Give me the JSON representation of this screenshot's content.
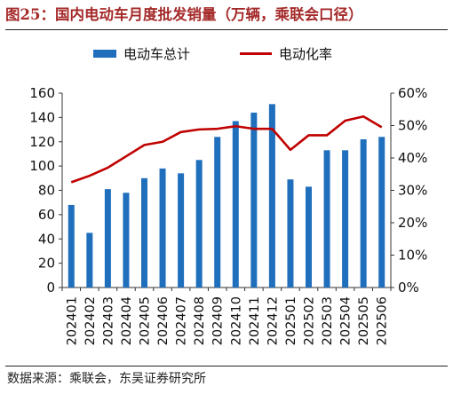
{
  "figure": {
    "title": "图25：国内电动车月度批发销量（万辆，乘联会口径）",
    "source": "数据来源：乘联会，东吴证券研究所"
  },
  "colors": {
    "bar": "#1f6fbd",
    "line": "#c00000",
    "title": "#a52a2a"
  },
  "chart_data": {
    "type": "bar",
    "categories": [
      "202401",
      "202402",
      "202403",
      "202404",
      "202405",
      "202406",
      "202407",
      "202408",
      "202409",
      "202410",
      "202411",
      "202412",
      "202501",
      "202502",
      "202503",
      "202504",
      "202505",
      "202506"
    ],
    "series": [
      {
        "name": "电动车总计",
        "type": "bar",
        "axis": "left",
        "values": [
          68,
          45,
          81,
          78,
          90,
          98,
          94,
          105,
          124,
          137,
          144,
          151,
          89,
          83,
          113,
          113,
          122,
          124
        ]
      },
      {
        "name": "电动化率",
        "type": "line",
        "axis": "right",
        "unit": "%",
        "values": [
          32.5,
          34.5,
          37.0,
          40.5,
          44.0,
          45.0,
          48.0,
          48.8,
          49.0,
          49.8,
          49.0,
          49.0,
          42.5,
          47.0,
          47.0,
          51.5,
          52.8,
          49.5
        ]
      }
    ],
    "y_left": {
      "min": 0,
      "max": 160,
      "ticks": [
        "0",
        "20",
        "40",
        "60",
        "80",
        "100",
        "120",
        "140",
        "160"
      ]
    },
    "y_right": {
      "min": 0,
      "max": 60,
      "ticks": [
        "0%",
        "10%",
        "20%",
        "30%",
        "40%",
        "50%",
        "60%"
      ]
    },
    "legend_position": "top",
    "grid": false
  }
}
